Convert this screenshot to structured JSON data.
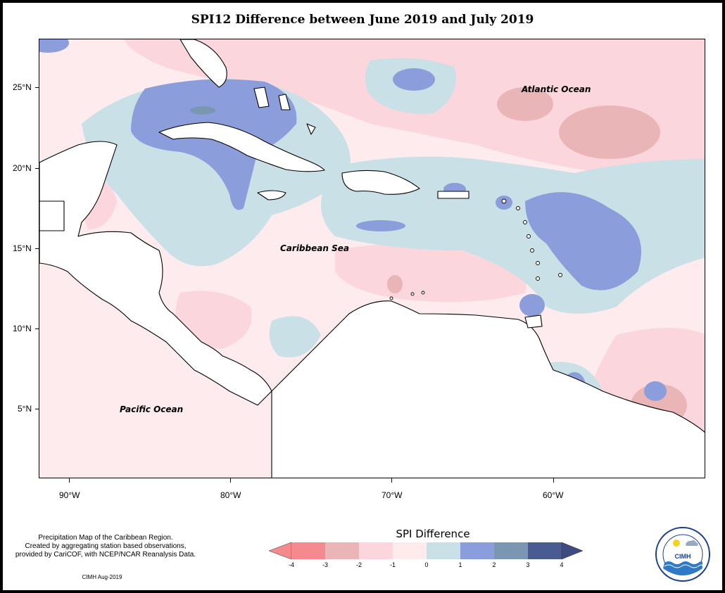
{
  "title": "SPI12 Difference between June 2019 and July 2019",
  "map": {
    "labels": {
      "atlantic": "Atlantic Ocean",
      "caribbean": "Caribbean Sea",
      "pacific": "Pacific Ocean"
    },
    "lat_ticks": [
      "25°N",
      "20°N",
      "15°N",
      "10°N",
      "5°N"
    ],
    "lon_ticks": [
      "90°W",
      "80°W",
      "70°W",
      "60°W"
    ]
  },
  "legend": {
    "title": "SPI Difference",
    "tick_labels": [
      "-4",
      "-3",
      "-2",
      "-1",
      "0",
      "1",
      "2",
      "3",
      "4"
    ],
    "colors": [
      "#f4898e",
      "#eab5b6",
      "#fbd7dd",
      "#fdebed",
      "#c9e1e6",
      "#8b9edb",
      "#7a96b0",
      "#4a5b92"
    ]
  },
  "footnote": {
    "line1": "Precipitation Map of the Caribbean Region.",
    "line2": "Created by aggregating station based observations,",
    "line3": "provided by CariCOF, with NCEP/NCAR Reanalysis Data.",
    "credit": "CIMH Aug-2019"
  },
  "logo": {
    "text": "CIMH",
    "ring_text": "Caribbean Institute for Meteorology and Hydrology"
  }
}
